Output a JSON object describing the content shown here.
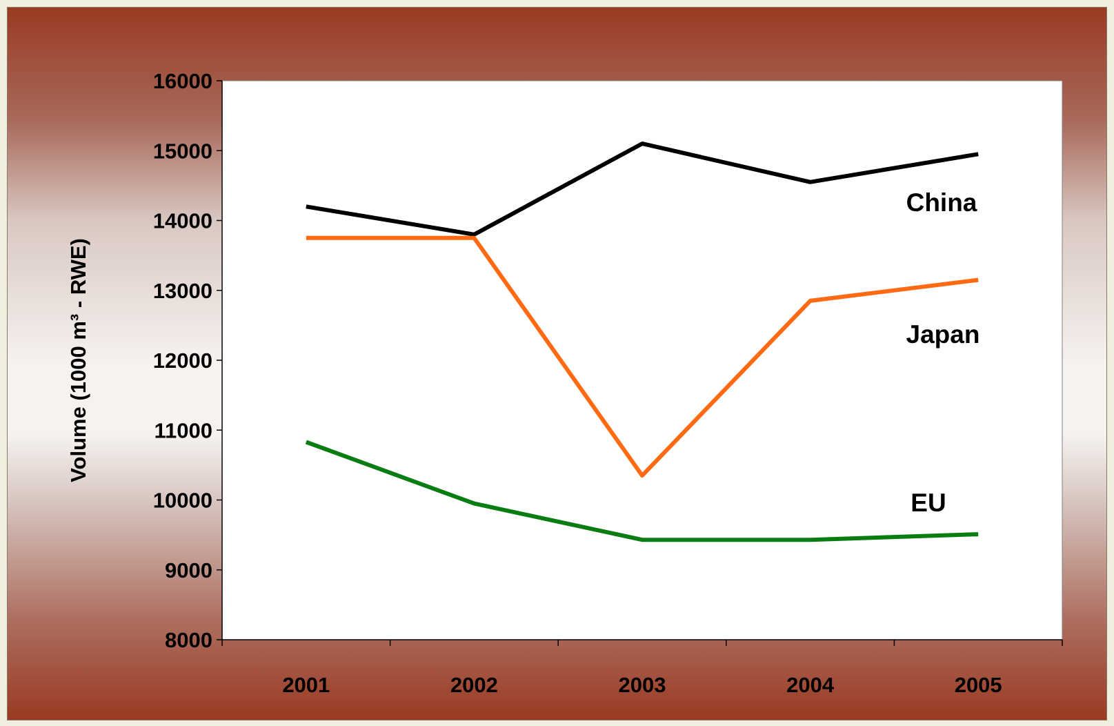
{
  "chart_data": {
    "type": "line",
    "title": "",
    "xlabel": "",
    "ylabel": "Volume (1000 m³ - RWE)",
    "categories": [
      "2001",
      "2002",
      "2003",
      "2004",
      "2005"
    ],
    "ylim": [
      8000,
      16000
    ],
    "yticks": [
      8000,
      9000,
      10000,
      11000,
      12000,
      13000,
      14000,
      15000,
      16000
    ],
    "grid": false,
    "legend": "direct labels at right",
    "series": [
      {
        "name": "China",
        "color": "#000000",
        "values": [
          14200,
          13800,
          15100,
          14550,
          14950
        ]
      },
      {
        "name": "Japan",
        "color": "#ff6a13",
        "values": [
          13750,
          13750,
          10350,
          12850,
          13150
        ]
      },
      {
        "name": "EU",
        "color": "#0a7d12",
        "values": [
          10830,
          9950,
          9430,
          9430,
          9510
        ]
      }
    ]
  }
}
